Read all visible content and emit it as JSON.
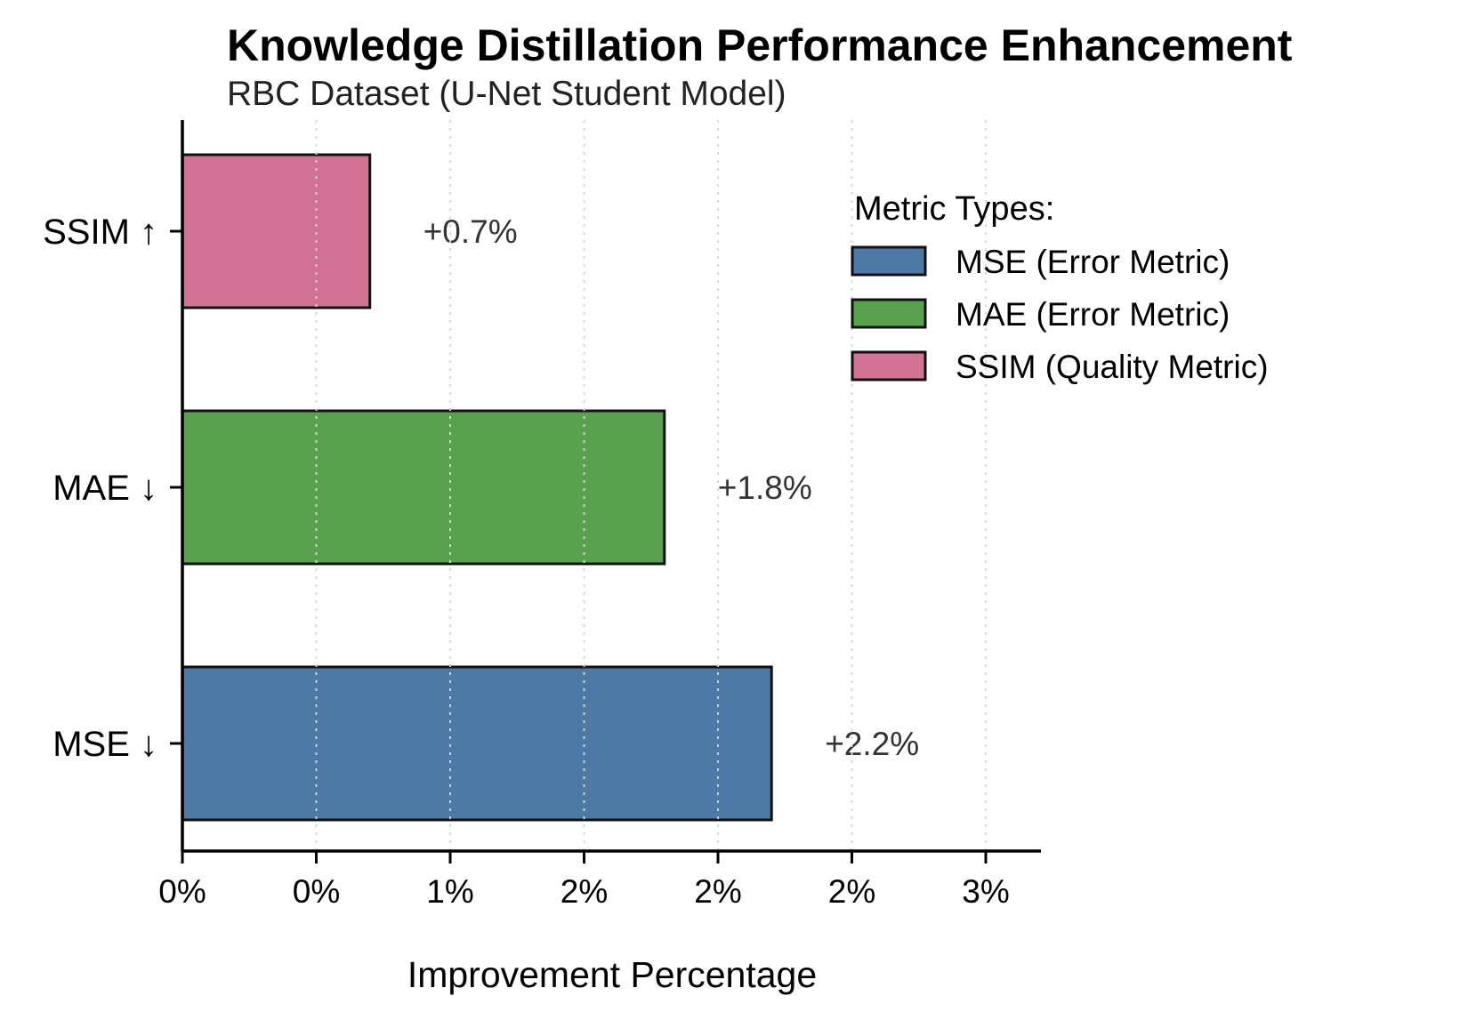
{
  "chart_data": {
    "type": "bar",
    "orientation": "horizontal",
    "title": "Knowledge Distillation Performance Enhancement",
    "subtitle": "RBC Dataset (U-Net Student Model)",
    "xlabel": "Improvement Percentage",
    "ylabel": "",
    "categories": [
      "MSE ↓",
      "MAE ↓",
      "SSIM ↑"
    ],
    "values": [
      2.2,
      1.8,
      0.7
    ],
    "data_labels": [
      "+2.2%",
      "+1.8%",
      "+0.7%"
    ],
    "colors": [
      "#4e79a7",
      "#59a14f",
      "#d37295"
    ],
    "xlim": [
      0,
      3.2
    ],
    "xticks": [
      0,
      0.5,
      1.0,
      1.5,
      2.0,
      2.5,
      3.0
    ],
    "xtick_labels": [
      "0%",
      "0%",
      "1%",
      "2%",
      "2%",
      "2%",
      "3%"
    ],
    "grid": "x, dotted",
    "legend": {
      "title": "Metric Types:",
      "placement": "upper-right",
      "entries": [
        {
          "label": "MSE (Error Metric)",
          "color": "#4e79a7"
        },
        {
          "label": "MAE (Error Metric)",
          "color": "#59a14f"
        },
        {
          "label": "SSIM (Quality Metric)",
          "color": "#d37295"
        }
      ]
    }
  }
}
